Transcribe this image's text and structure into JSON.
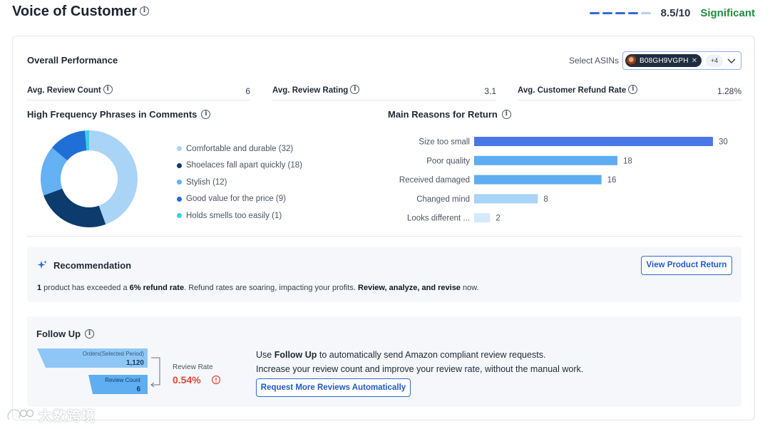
{
  "header": {
    "title": "Voice of Customer",
    "score": "8.5/10",
    "score_label": "Significant",
    "score_level": 0.85,
    "score_color": "#1e8e3e"
  },
  "overall": {
    "title": "Overall Performance",
    "select_label": "Select ASINs",
    "selected_asin": "B08GH9VGPH",
    "more_count": "+4",
    "metrics": [
      {
        "label": "Avg. Review Count",
        "value": "6"
      },
      {
        "label": "Avg. Review Rating",
        "value": "3.1"
      },
      {
        "label": "Avg. Customer Refund Rate",
        "value": "1.28%"
      }
    ]
  },
  "phrases": {
    "title": "High Frequency Phrases in Comments",
    "items": [
      {
        "label": "Comfortable and durable (32)",
        "value": 32,
        "color": "#a9d4f6"
      },
      {
        "label": "Shoelaces fall apart quickly (18)",
        "value": 18,
        "color": "#0d3b6e"
      },
      {
        "label": "Stylish (12)",
        "value": 12,
        "color": "#64b1f3"
      },
      {
        "label": "Good value for the price (9)",
        "value": 9,
        "color": "#1f6fd6"
      },
      {
        "label": "Holds smells too easily (1)",
        "value": 1,
        "color": "#3ccfe0"
      }
    ]
  },
  "chart_data": {
    "type": "bar",
    "title": "Main Reasons for Return",
    "categories": [
      "Size too small",
      "Poor quality",
      "Received damaged",
      "Changed mind",
      "Looks different ..."
    ],
    "values": [
      30,
      18,
      16,
      8,
      2
    ],
    "colors": [
      "#4a77e8",
      "#5eadf2",
      "#5eadf2",
      "#a7d4f7",
      "#d4eafb"
    ],
    "orientation": "horizontal",
    "xlim": [
      0,
      30
    ]
  },
  "recommendation": {
    "title": "Recommendation",
    "text_parts": [
      {
        "t": "1",
        "b": true
      },
      {
        "t": " product has exceeded a ",
        "b": false
      },
      {
        "t": "6% refund rate",
        "b": true
      },
      {
        "t": ". Refund rates are soaring, impacting your profits. ",
        "b": false
      },
      {
        "t": "Review, analyze, and revise",
        "b": true
      },
      {
        "t": " now.",
        "b": false
      }
    ],
    "button": "View Product Return"
  },
  "followup": {
    "title": "Follow Up",
    "orders_label": "Orders(Selected Period)",
    "orders_value": "1,120",
    "review_count_label": "Review Count",
    "review_count_value": "6",
    "review_rate_label": "Review Rate",
    "review_rate_value": "0.54%",
    "line1_pre": "Use ",
    "line1_bold": "Follow Up",
    "line1_post": " to automatically send Amazon compliant review requests.",
    "line2": "Increase your review count and improve your review rate, without the manual work.",
    "button": "Request More Reviews Automatically"
  },
  "watermark": {
    "text": "大数跨境"
  }
}
